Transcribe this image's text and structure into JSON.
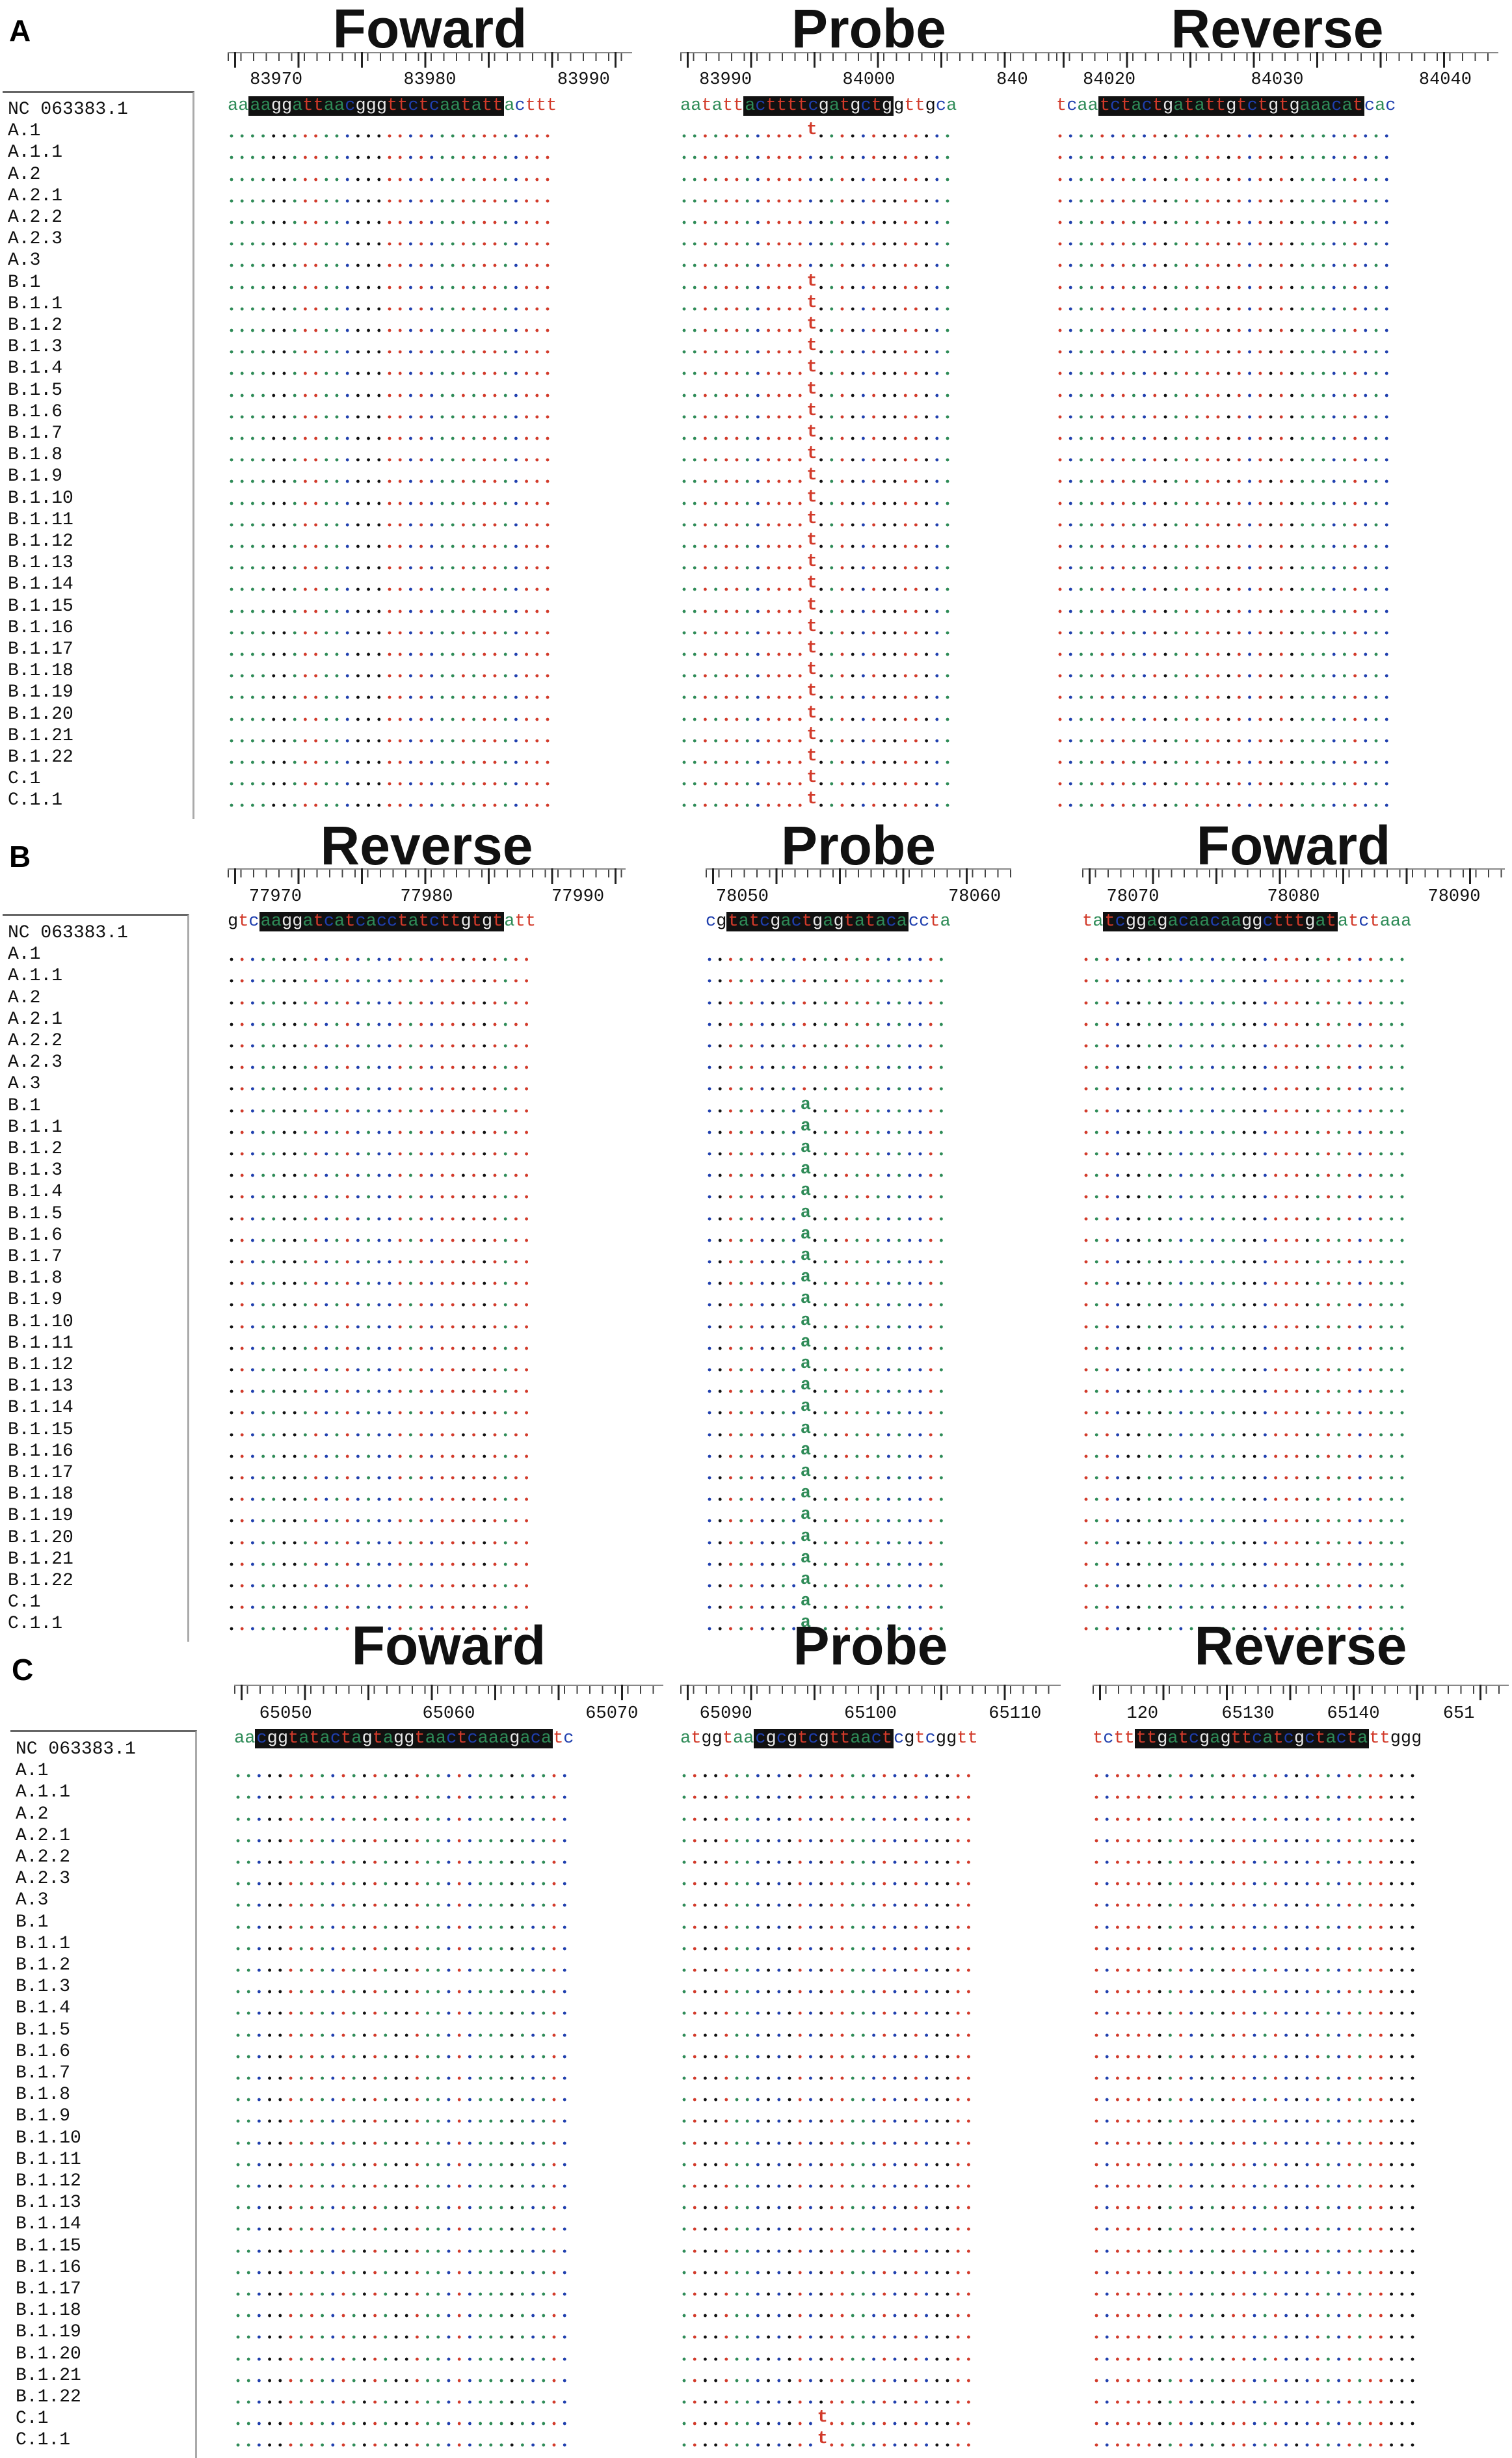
{
  "colors": {
    "a": "#2e8b57",
    "c": "#1f3fae",
    "g": "#111111",
    "t": "#d23a2a",
    "highlight_bg": "#111111"
  },
  "sequence_names": [
    "NC 063383.1",
    "A.1",
    "A.1.1",
    "A.2",
    "A.2.1",
    "A.2.2",
    "A.2.3",
    "A.3",
    "B.1",
    "B.1.1",
    "B.1.2",
    "B.1.3",
    "B.1.4",
    "B.1.5",
    "B.1.6",
    "B.1.7",
    "B.1.8",
    "B.1.9",
    "B.1.10",
    "B.1.11",
    "B.1.12",
    "B.1.13",
    "B.1.14",
    "B.1.15",
    "B.1.16",
    "B.1.17",
    "B.1.18",
    "B.1.19",
    "B.1.20",
    "B.1.21",
    "B.1.22",
    "C.1",
    "C.1.1"
  ],
  "panels": [
    {
      "letter": "A",
      "blocks": [
        {
          "title": "Foward",
          "ticks": [
            "83970",
            "83980",
            "83990"
          ],
          "seq_pre": "aa",
          "seq_hl": "aaggattaacgggttctcaatatt",
          "seq_post": "acttt",
          "mutation": null
        },
        {
          "title": "Probe",
          "ticks": [
            "83990",
            "84000",
            "840"
          ],
          "seq_pre": "aatatt",
          "seq_hl": "acttttcgatgctg",
          "seq_post": "gttgca",
          "mutation": {
            "base": "t",
            "rows": [
              "A.1",
              "B.1",
              "B.1.1",
              "B.1.2",
              "B.1.3",
              "B.1.4",
              "B.1.5",
              "B.1.6",
              "B.1.7",
              "B.1.8",
              "B.1.9",
              "B.1.10",
              "B.1.11",
              "B.1.12",
              "B.1.13",
              "B.1.14",
              "B.1.15",
              "B.1.16",
              "B.1.17",
              "B.1.18",
              "B.1.19",
              "B.1.20",
              "B.1.21",
              "B.1.22",
              "C.1",
              "C.1.1"
            ]
          }
        },
        {
          "title": "Reverse",
          "ticks": [
            "84020",
            "84030",
            "84040"
          ],
          "seq_pre": "tcaa",
          "seq_hl": "tctactgatattgtctgtgaaacat",
          "seq_post": "cac",
          "mutation": null
        }
      ]
    },
    {
      "letter": "B",
      "blocks": [
        {
          "title": "Reverse",
          "ticks": [
            "77970",
            "77980",
            "77990"
          ],
          "seq_pre": "gtc",
          "seq_hl": "aaggatcatcacctatcttgtgt",
          "seq_post": "att",
          "mutation": null
        },
        {
          "title": "Probe",
          "ticks": [
            "78050",
            "78060"
          ],
          "seq_pre": "cg",
          "seq_hl": "tatcgactgagtataca",
          "seq_post": "ccta",
          "mutation": {
            "base": "a",
            "rows": [
              "B.1",
              "B.1.1",
              "B.1.2",
              "B.1.3",
              "B.1.4",
              "B.1.5",
              "B.1.6",
              "B.1.7",
              "B.1.8",
              "B.1.9",
              "B.1.10",
              "B.1.11",
              "B.1.12",
              "B.1.13",
              "B.1.14",
              "B.1.15",
              "B.1.16",
              "B.1.17",
              "B.1.18",
              "B.1.19",
              "B.1.20",
              "B.1.21",
              "B.1.22",
              "C.1",
              "C.1.1"
            ]
          }
        },
        {
          "title": "Foward",
          "ticks": [
            "78070",
            "78080",
            "78090"
          ],
          "seq_pre": "ta",
          "seq_hl": "tcggagacaacaaggctttgat",
          "seq_post": "atctaaa",
          "mutation": null
        }
      ]
    },
    {
      "letter": "C",
      "blocks": [
        {
          "title": "Foward",
          "ticks": [
            "65050",
            "65060",
            "65070"
          ],
          "seq_pre": "aa",
          "seq_hl": "cggtatactagtaggtaactcaaagaca",
          "seq_post": "tc",
          "mutation": null
        },
        {
          "title": "Probe",
          "ticks": [
            "65090",
            "65100",
            "65110"
          ],
          "seq_pre": "atggtaa",
          "seq_hl": "cgcgtcgttaact",
          "seq_post": "cgtcggtt",
          "mutation": {
            "base": "t",
            "rows": [
              "C.1",
              "C.1.1"
            ]
          }
        },
        {
          "title": "Reverse",
          "ticks": [
            "120",
            "65130",
            "65140",
            "651"
          ],
          "seq_pre": "tctt",
          "seq_hl": "ttgatcgagttcatcgctacta",
          "seq_post": "ttggg",
          "mutation": null
        }
      ]
    }
  ]
}
